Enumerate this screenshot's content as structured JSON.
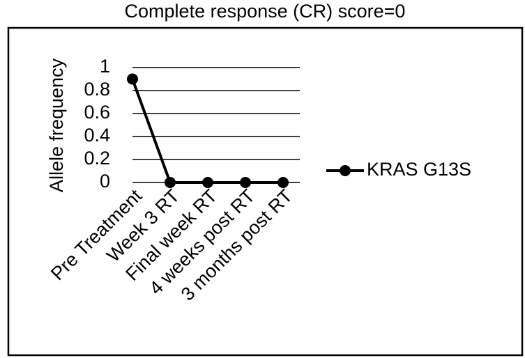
{
  "chart_data": {
    "type": "line",
    "title": "Complete response (CR) score=0",
    "y_label": "Allele frequency",
    "categories": [
      "Pre Treatment",
      "Week 3 RT",
      "Final week RT",
      "4 weeks post RT",
      "3 months post RT"
    ],
    "series": [
      {
        "name": "KRAS G13S",
        "color": "#000000",
        "values": [
          0.9,
          0,
          0,
          0,
          0
        ]
      }
    ],
    "ylim": [
      0,
      1
    ],
    "yticks": [
      0,
      0.2,
      0.4,
      0.6,
      0.8,
      1
    ],
    "grid": true,
    "legend": "right"
  }
}
